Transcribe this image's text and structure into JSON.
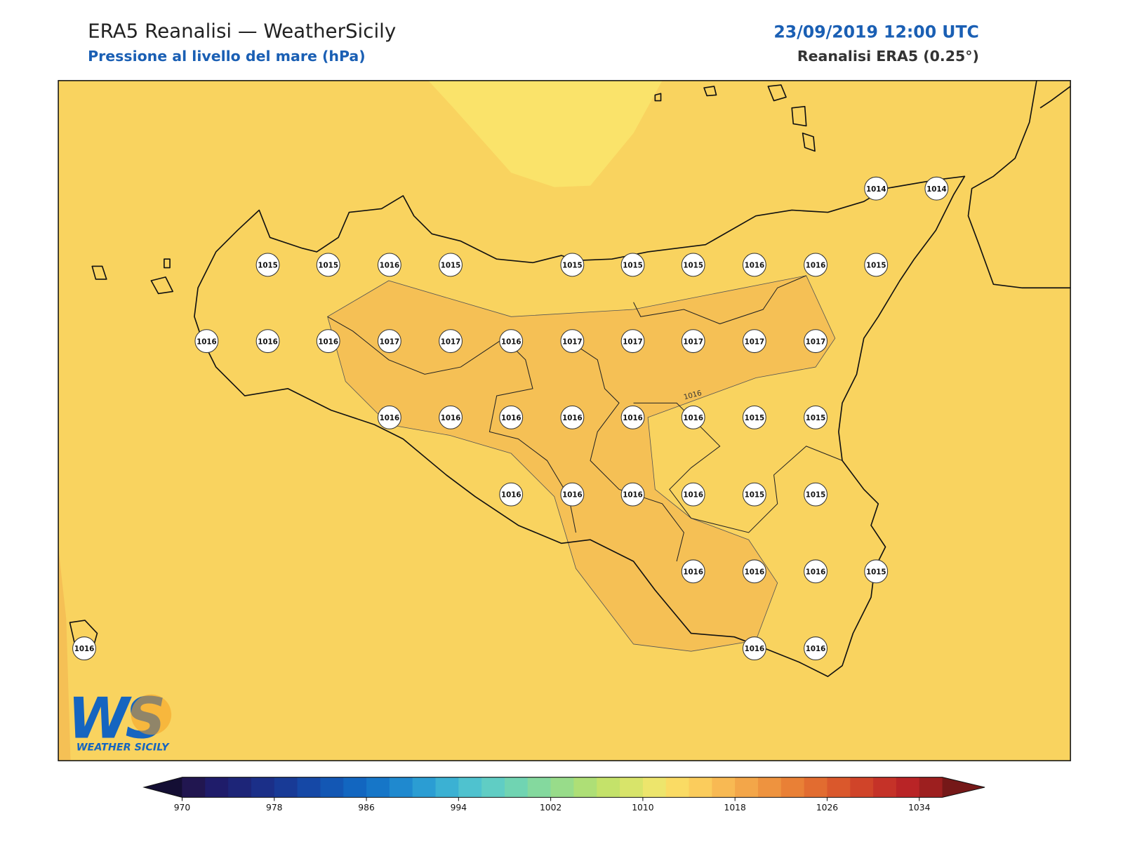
{
  "header": {
    "title": "ERA5 Reanalisi — WeatherSicily",
    "subtitle": "Pressione al livello del mare (hPa)",
    "date": "23/09/2019 12:00 UTC",
    "source": "Reanalisi ERA5 (0.25°)"
  },
  "map": {
    "stations": [
      1014,
      1014,
      1015,
      1015,
      1016,
      1015,
      1015,
      1015,
      1015,
      1016,
      1016,
      1015,
      1016,
      1016,
      1016,
      1017,
      1017,
      1016,
      1017,
      1017,
      1017,
      1017,
      1017,
      1016,
      1016,
      1016,
      1016,
      1016,
      1016,
      1015,
      1015,
      1016,
      1016,
      1016,
      1016,
      1015,
      1015,
      1016,
      1016,
      1016,
      1015,
      1016,
      1016,
      1016
    ],
    "contour_label": "1016"
  },
  "colorbar": {
    "ticks": [
      970,
      978,
      986,
      994,
      1002,
      1010,
      1018,
      1026,
      1034
    ],
    "colors": [
      "#211650",
      "#1f1c6a",
      "#1d2578",
      "#1b2f88",
      "#183a96",
      "#1548a6",
      "#1357b4",
      "#1266c0",
      "#1676c8",
      "#1f89cf",
      "#2b9dd3",
      "#3bb1d3",
      "#4fc2cf",
      "#60cdc4",
      "#70d4b2",
      "#84d99e",
      "#98dc8a",
      "#aedf76",
      "#c4e26a",
      "#d8e46a",
      "#ede56c",
      "#fadb64",
      "#fbcc5c",
      "#f8b953",
      "#f3a649",
      "#ee933f",
      "#e98036",
      "#e26c30",
      "#da582c",
      "#d04429",
      "#c53228",
      "#b92426",
      "#9d1f1f"
    ],
    "under_color": "#140e34",
    "over_color": "#751818"
  },
  "logo": {
    "mark": "WS",
    "text": "WEATHER SICILY"
  }
}
